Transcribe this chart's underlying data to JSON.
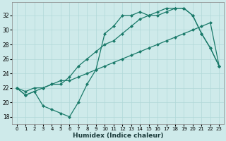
{
  "xlabel": "Humidex (Indice chaleur)",
  "bg_color": "#ceeaea",
  "line_color": "#1a7a6a",
  "xlim": [
    -0.5,
    23.5
  ],
  "ylim": [
    17.0,
    33.8
  ],
  "yticks": [
    18,
    20,
    22,
    24,
    26,
    28,
    30,
    32
  ],
  "xticks": [
    0,
    1,
    2,
    3,
    4,
    5,
    6,
    7,
    8,
    9,
    10,
    11,
    12,
    13,
    14,
    15,
    16,
    17,
    18,
    19,
    20,
    21,
    22,
    23
  ],
  "line1_x": [
    0,
    1,
    2,
    3,
    4,
    5,
    6,
    7,
    8,
    9,
    10,
    11,
    12,
    13,
    14,
    15,
    16,
    17,
    18,
    19,
    20,
    21,
    22,
    23
  ],
  "line1_y": [
    22,
    21,
    21.5,
    19.5,
    19,
    18.5,
    18,
    20,
    22.5,
    24.5,
    29.5,
    30.5,
    32,
    32,
    32.5,
    32,
    32.5,
    33,
    33,
    33,
    32,
    29.5,
    27.5,
    25
  ],
  "line2_x": [
    0,
    1,
    2,
    3,
    4,
    5,
    6,
    7,
    8,
    9,
    10,
    11,
    12,
    13,
    14,
    15,
    16,
    17,
    18,
    19,
    20,
    21,
    22,
    23
  ],
  "line2_y": [
    22,
    21.5,
    22,
    22,
    22.5,
    23,
    23,
    23.5,
    24,
    24.5,
    25,
    25.5,
    26,
    26.5,
    27,
    27.5,
    28,
    28.5,
    29,
    29.5,
    30,
    30.5,
    31,
    25
  ],
  "line3_x": [
    0,
    1,
    2,
    3,
    4,
    5,
    6,
    7,
    8,
    9,
    10,
    11,
    12,
    13,
    14,
    15,
    16,
    17,
    18,
    19,
    20,
    21,
    22,
    23
  ],
  "line3_y": [
    22,
    21,
    21.5,
    22,
    22.5,
    22.5,
    23.5,
    25,
    26,
    27,
    28,
    28.5,
    29.5,
    30.5,
    31.5,
    32,
    32,
    32.5,
    33,
    33,
    32,
    29.5,
    27.5,
    25
  ],
  "grid_color": "#b0d8d8",
  "tick_fontsize": 5.5,
  "xlabel_fontsize": 6.5,
  "marker_size": 2.5,
  "linewidth": 0.9
}
